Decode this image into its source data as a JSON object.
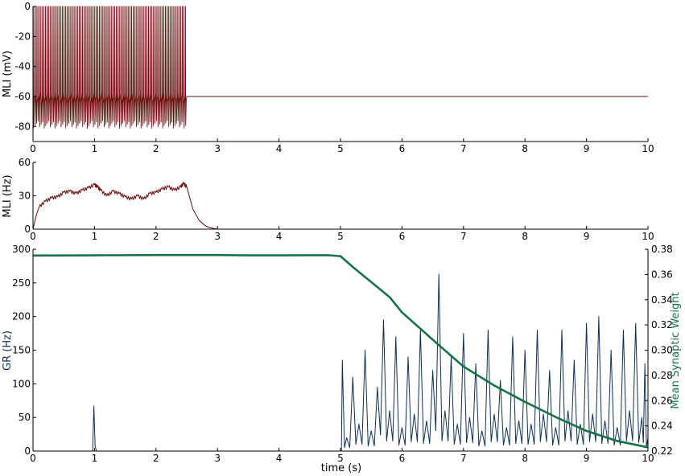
{
  "chart_data": [
    {
      "type": "line",
      "ylabel": "MLI (mV)",
      "xlim": [
        0,
        10
      ],
      "ylim": [
        -90,
        0
      ],
      "x_ticks": [
        0,
        1,
        2,
        3,
        4,
        5,
        6,
        7,
        8,
        9,
        10
      ],
      "y_ticks": [
        0,
        -20,
        -40,
        -60,
        -80
      ],
      "grid": false,
      "series": [
        {
          "color": "#6b0d0d",
          "description_of_trace": "spiking",
          "spike_peak": 0,
          "spike_trough": -81,
          "spiking_start": 0.0,
          "spiking_end": 2.5,
          "spike_count": 100,
          "resting_value": -60,
          "points": [
            [
              0,
              -60
            ],
            [
              2.5,
              -60
            ],
            [
              10,
              -60
            ]
          ]
        }
      ]
    },
    {
      "type": "line",
      "ylabel": "MLI (Hz)",
      "xlim": [
        0,
        10
      ],
      "ylim": [
        0,
        60
      ],
      "x_ticks": [
        0,
        1,
        2,
        3,
        4,
        5,
        6,
        7,
        8,
        9,
        10
      ],
      "y_ticks": [
        0,
        30,
        60
      ],
      "grid": false,
      "series": [
        {
          "color": "#6b0d0d",
          "points": [
            [
              0,
              0
            ],
            [
              0.05,
              12
            ],
            [
              0.1,
              20
            ],
            [
              0.2,
              25
            ],
            [
              0.3,
              28
            ],
            [
              0.4,
              29
            ],
            [
              0.5,
              33
            ],
            [
              0.6,
              34
            ],
            [
              0.7,
              32
            ],
            [
              0.8,
              35
            ],
            [
              0.9,
              37
            ],
            [
              1.0,
              40
            ],
            [
              1.05,
              38
            ],
            [
              1.1,
              35
            ],
            [
              1.2,
              30
            ],
            [
              1.3,
              34
            ],
            [
              1.4,
              32
            ],
            [
              1.5,
              29
            ],
            [
              1.6,
              27
            ],
            [
              1.7,
              30
            ],
            [
              1.8,
              27
            ],
            [
              1.9,
              32
            ],
            [
              2.0,
              33
            ],
            [
              2.1,
              36
            ],
            [
              2.2,
              38
            ],
            [
              2.3,
              35
            ],
            [
              2.4,
              38
            ],
            [
              2.45,
              41
            ],
            [
              2.5,
              38
            ],
            [
              2.55,
              28
            ],
            [
              2.6,
              18
            ],
            [
              2.7,
              8
            ],
            [
              2.8,
              3
            ],
            [
              2.9,
              1
            ],
            [
              3.0,
              0
            ],
            [
              10,
              0
            ]
          ]
        }
      ]
    },
    {
      "type": "line",
      "xlabel": "time (s)",
      "ylabel": "GR (Hz)",
      "ylabel_right": "Mean Synaptic Weight",
      "xlim": [
        0,
        10
      ],
      "ylim": [
        0,
        300
      ],
      "ylim_right": [
        0.22,
        0.38
      ],
      "x_ticks": [
        0,
        1,
        2,
        3,
        4,
        5,
        6,
        7,
        8,
        9,
        10
      ],
      "y_ticks": [
        0,
        50,
        100,
        150,
        200,
        250,
        300
      ],
      "y_ticks_right": [
        0.22,
        0.24,
        0.26,
        0.28,
        0.3,
        0.32,
        0.34,
        0.36,
        0.38
      ],
      "grid": false,
      "series": [
        {
          "color": "#0e2f55",
          "axis": "left",
          "points": [
            [
              0,
              0
            ],
            [
              0.97,
              0
            ],
            [
              0.99,
              67
            ],
            [
              1.01,
              8
            ],
            [
              1.03,
              0
            ],
            [
              5.0,
              0
            ],
            [
              5.03,
              135
            ],
            [
              5.1,
              20
            ],
            [
              5.2,
              110
            ],
            [
              5.3,
              40
            ],
            [
              5.4,
              150
            ],
            [
              5.5,
              30
            ],
            [
              5.6,
              95
            ],
            [
              5.7,
              195
            ],
            [
              5.8,
              60
            ],
            [
              5.9,
              170
            ],
            [
              6.0,
              35
            ],
            [
              6.1,
              140
            ],
            [
              6.2,
              55
            ],
            [
              6.3,
              180
            ],
            [
              6.4,
              45
            ],
            [
              6.5,
              120
            ],
            [
              6.6,
              263
            ],
            [
              6.7,
              60
            ],
            [
              6.8,
              140
            ],
            [
              6.9,
              40
            ],
            [
              7.0,
              175
            ],
            [
              7.1,
              50
            ],
            [
              7.2,
              130
            ],
            [
              7.3,
              30
            ],
            [
              7.4,
              180
            ],
            [
              7.5,
              55
            ],
            [
              7.6,
              105
            ],
            [
              7.7,
              35
            ],
            [
              7.8,
              170
            ],
            [
              7.9,
              45
            ],
            [
              8.0,
              150
            ],
            [
              8.1,
              40
            ],
            [
              8.2,
              180
            ],
            [
              8.3,
              55
            ],
            [
              8.4,
              120
            ],
            [
              8.5,
              35
            ],
            [
              8.6,
              180
            ],
            [
              8.7,
              60
            ],
            [
              8.8,
              135
            ],
            [
              8.9,
              40
            ],
            [
              9.0,
              190
            ],
            [
              9.1,
              55
            ],
            [
              9.2,
              200
            ],
            [
              9.3,
              45
            ],
            [
              9.4,
              150
            ],
            [
              9.5,
              35
            ],
            [
              9.6,
              180
            ],
            [
              9.7,
              60
            ],
            [
              9.8,
              190
            ],
            [
              9.9,
              50
            ],
            [
              9.95,
              130
            ],
            [
              10.0,
              20
            ]
          ]
        },
        {
          "color": "#177245",
          "axis": "right",
          "points": [
            [
              0,
              0.375
            ],
            [
              1,
              0.3752
            ],
            [
              2,
              0.3754
            ],
            [
              3,
              0.3754
            ],
            [
              3.5,
              0.3752
            ],
            [
              4,
              0.3752
            ],
            [
              4.8,
              0.3753
            ],
            [
              5.0,
              0.3745
            ],
            [
              5.2,
              0.366
            ],
            [
              5.5,
              0.354
            ],
            [
              5.8,
              0.342
            ],
            [
              6.0,
              0.33
            ],
            [
              6.3,
              0.317
            ],
            [
              6.6,
              0.304
            ],
            [
              7.0,
              0.287
            ],
            [
              7.5,
              0.272
            ],
            [
              8.0,
              0.259
            ],
            [
              8.5,
              0.247
            ],
            [
              9.0,
              0.236
            ],
            [
              9.5,
              0.228
            ],
            [
              10.0,
              0.223
            ]
          ]
        }
      ]
    }
  ]
}
